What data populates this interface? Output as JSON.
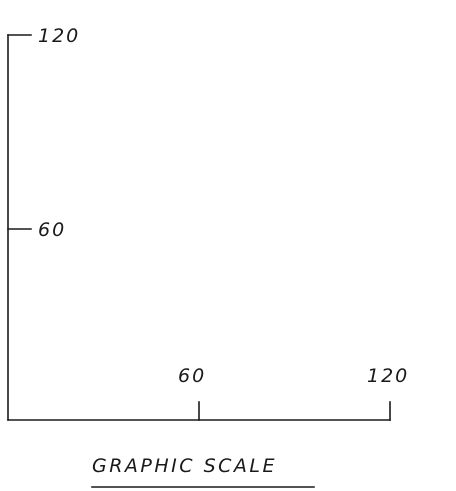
{
  "graphic_scale": {
    "vertical_axis": {
      "tick_labels": [
        "120",
        "60"
      ]
    },
    "horizontal_axis": {
      "tick_labels": [
        "60",
        "120"
      ]
    },
    "caption": "GRAPHIC SCALE"
  }
}
